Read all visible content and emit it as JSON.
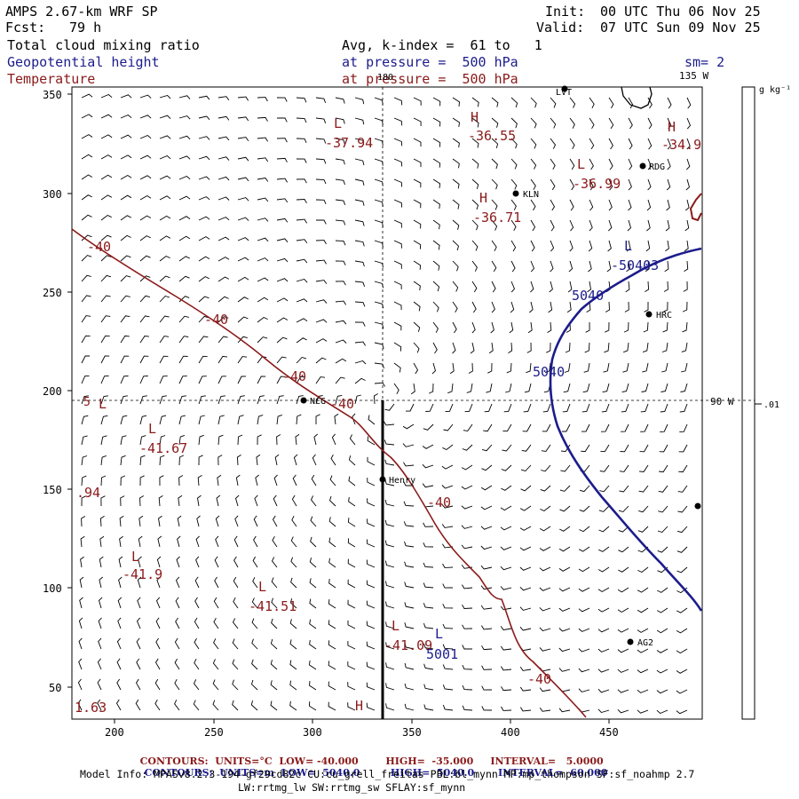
{
  "header": {
    "model_title": "AMPS 2.67-km WRF SP",
    "forecast_label": "Fcst:",
    "forecast_hours": "79 h",
    "init_label": "Init:",
    "init_time": "00 UTC Thu 06 Nov 25",
    "valid_label": "Valid:",
    "valid_time": "07 UTC Sun 09 Nov 25"
  },
  "fields": {
    "field1": "Total cloud mixing ratio",
    "field2": "Geopotential height",
    "field3": "Temperature",
    "field1_info": "Avg, k-index =  61 to   1",
    "field2_info": "at pressure =  500 hPa",
    "field3_info": "at pressure =  500 hPa",
    "smoothing": "sm= 2"
  },
  "colorbar": {
    "units": "g kg⁻¹",
    "tick": ".01"
  },
  "map": {
    "lon_labels": {
      "top": "180",
      "top_right": "135 W",
      "right": "90 W",
      "left_marker": "5"
    },
    "x_ticks": [
      "200",
      "250",
      "300",
      "350",
      "400",
      "450"
    ],
    "y_ticks": [
      "50",
      "100",
      "150",
      "200",
      "250",
      "300",
      "350"
    ],
    "stations": [
      {
        "name": "LVT"
      },
      {
        "name": "RDG"
      },
      {
        "name": "KLN"
      },
      {
        "name": "HRC"
      },
      {
        "name": "NCG"
      },
      {
        "name": "Henry"
      },
      {
        "name": "AG2"
      },
      {
        "name": ""
      }
    ],
    "temperature_labels": [
      "-37.94",
      "-36.55",
      "-34.9",
      "-36.99",
      "-36.71",
      "-41.67",
      "-41.9",
      "-41.51",
      "-41.09",
      "1.63",
      ".94",
      "-40",
      "-40",
      "-40",
      "-40",
      "-40",
      "-40"
    ],
    "height_labels": [
      "5040",
      "5040",
      "-50403",
      "5001"
    ],
    "extrema_letters": [
      "L",
      "H",
      "H",
      "L",
      "H",
      "L",
      "L",
      "L",
      "L",
      "L",
      "L",
      "L",
      "H"
    ]
  },
  "footer": {
    "contours_label": "CONTOURS:",
    "temp_units": "UNITS=°C",
    "temp_low": "LOW= -40.000",
    "temp_high": "HIGH=  -35.000",
    "temp_interval": "INTERVAL=   5.0000",
    "hgt_units": "UNITS=m",
    "hgt_low": "LOW=  5040.0",
    "hgt_high": "HIGH=  5040.0",
    "hgt_interval": "INTERVAL=  60.000",
    "model_info": "Model Info: MPASv8.2.3-194-gf29cd82c CU:cu_grell_freitas PBL:bl_mynn MP:mp_thompson SF:sf_noahmp 2.7",
    "model_info2": "LW:rrtmg_lw SW:rrtmg_sw SFLAY:sf_mynn"
  },
  "colors": {
    "temperature": "#8b1a1a",
    "height": "#1c1c8c",
    "text_blue": "#1c1c8c"
  }
}
